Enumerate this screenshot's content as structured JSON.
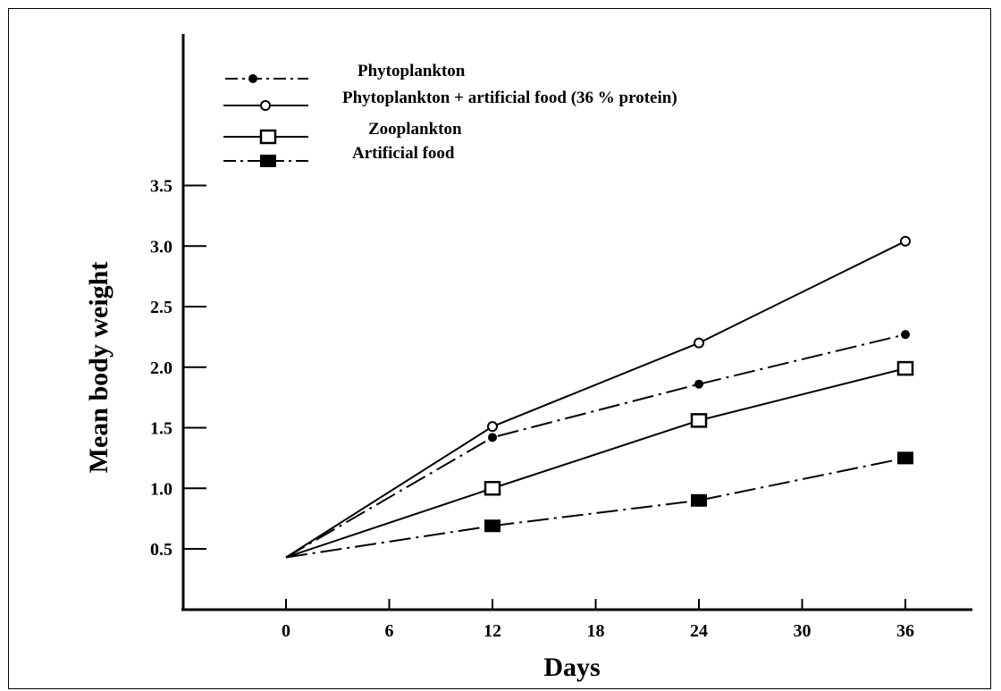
{
  "chart_data": {
    "type": "line",
    "title": "",
    "xlabel": "Days",
    "ylabel": "Mean body weight",
    "x_ticks": [
      "0",
      "6",
      "12",
      "18",
      "24",
      "30",
      "36"
    ],
    "y_ticks": [
      "0.5",
      "1.0",
      "1.5",
      "2.0",
      "2.5",
      "3.0",
      "3.5"
    ],
    "xlim": [
      -12,
      40
    ],
    "ylim": [
      0.0,
      4.5
    ],
    "grid": false,
    "legend_position": "top-left",
    "series": [
      {
        "name": "Phytoplankton",
        "marker": "filled-circle",
        "line": "dash-dot",
        "x": [
          0,
          12,
          24,
          36
        ],
        "y": [
          0.43,
          1.42,
          1.86,
          2.27
        ]
      },
      {
        "name": "Phytoplankton + artificial  food (36 % protein)",
        "marker": "open-circle",
        "line": "solid",
        "x": [
          0,
          12,
          24,
          36
        ],
        "y": [
          0.43,
          1.51,
          2.2,
          3.04
        ]
      },
      {
        "name": "Zooplankton",
        "marker": "open-square",
        "line": "solid",
        "x": [
          0,
          12,
          24,
          36
        ],
        "y": [
          0.43,
          1.0,
          1.56,
          1.99
        ]
      },
      {
        "name": "Artificial food",
        "marker": "filled-square",
        "line": "dash-dot",
        "x": [
          0,
          12,
          24,
          36
        ],
        "y": [
          0.43,
          0.69,
          0.9,
          1.25
        ]
      }
    ]
  }
}
